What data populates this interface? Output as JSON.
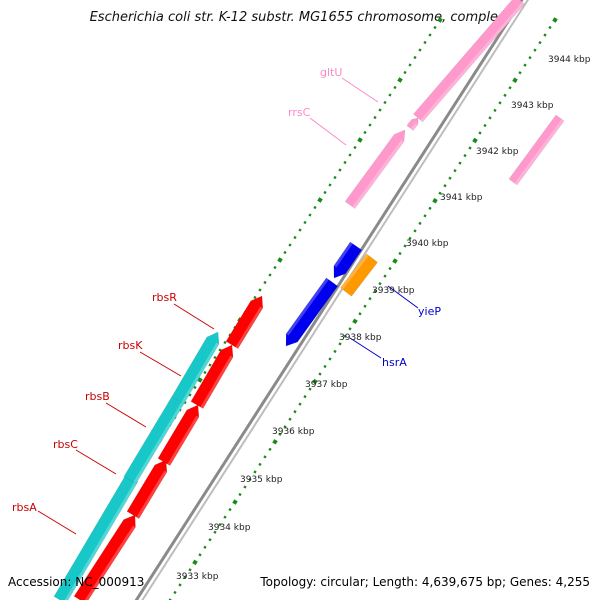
{
  "title": "Escherichia coli str. K-12 substr. MG1655 chromosome, comple...",
  "footer": {
    "accession": "Accession: NC_000913",
    "summary": "Topology: circular; Length: 4,639,675 bp; Genes: 4,255"
  },
  "colors": {
    "backbone": "#8a8a8a",
    "tick_dots": "#1a8a1a",
    "cyan": "#18c8c8",
    "red": "#ff0000",
    "blue": "#0000ee",
    "orange": "#ff9900",
    "pink": "#ff99cc"
  },
  "kbp_labels": [
    "3933 kbp",
    "3934 kbp",
    "3935 kbp",
    "3936 kbp",
    "3937 kbp",
    "3938 kbp",
    "3939 kbp",
    "3940 kbp",
    "3941 kbp",
    "3942 kbp",
    "3943 kbp",
    "3944 kbp"
  ],
  "gene_labels": [
    {
      "name": "rbsA",
      "color": "#cc0000"
    },
    {
      "name": "rbsC",
      "color": "#cc0000"
    },
    {
      "name": "rbsB",
      "color": "#cc0000"
    },
    {
      "name": "rbsK",
      "color": "#cc0000"
    },
    {
      "name": "rbsR",
      "color": "#cc0000"
    },
    {
      "name": "hsrA",
      "color": "#0000cc"
    },
    {
      "name": "yieP",
      "color": "#0000cc"
    },
    {
      "name": "rrsC",
      "color": "#ff88c8"
    },
    {
      "name": "gltU",
      "color": "#ff88c8"
    }
  ]
}
